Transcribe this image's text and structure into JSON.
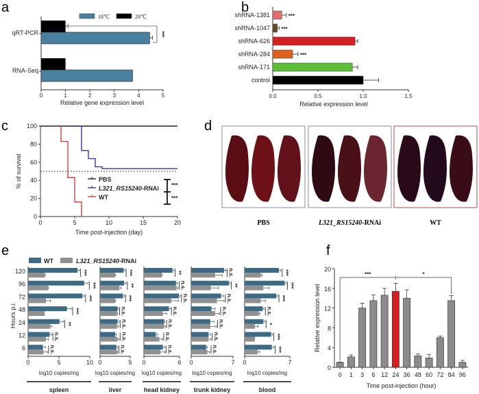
{
  "chart_data": [
    {
      "id": "a",
      "panel_label": "a",
      "type": "bar",
      "orientation": "horizontal",
      "categories": [
        "qRT-PCR",
        "RNA-Seq"
      ],
      "series": [
        {
          "name": "28℃",
          "color": "#000000",
          "values": [
            1.0,
            1.0
          ],
          "errors": [
            0.1,
            0
          ]
        },
        {
          "name": "18℃",
          "color": "#4a7fa0",
          "values": [
            4.45,
            3.75
          ],
          "errors": [
            0.12,
            0
          ]
        }
      ],
      "significance": [
        {
          "category": "qRT-PCR",
          "label": "***"
        }
      ],
      "xlabel": "Relative gene expression level",
      "xlim": [
        0,
        5
      ],
      "xticks": [
        "0",
        "1",
        "2",
        "3",
        "4",
        "5"
      ],
      "legend_position": "top"
    },
    {
      "id": "b",
      "panel_label": "b",
      "type": "bar",
      "orientation": "horizontal",
      "categories": [
        "shRNA-1381",
        "shRNA-1047",
        "shRNA-626",
        "shRNA-284",
        "shRNA-171",
        "control"
      ],
      "values": [
        0.1,
        0.05,
        0.91,
        0.22,
        0.88,
        1.0
      ],
      "errors": [
        0.05,
        0.02,
        0.03,
        0.06,
        0.06,
        0.17
      ],
      "colors": [
        "#e07070",
        "#6b4a2a",
        "#d42020",
        "#e06020",
        "#5cbf3a",
        "#000000"
      ],
      "significance": [
        "***",
        "***",
        "",
        "***",
        "",
        ""
      ],
      "xlabel": "Relative expression level",
      "xlim": [
        0,
        1.5
      ],
      "xticks": [
        "0.0",
        "0.5",
        "1.0",
        "1.5"
      ]
    },
    {
      "id": "c",
      "panel_label": "c",
      "type": "line",
      "subtype": "survival-step",
      "xlabel": "Time post-injection (day)",
      "ylabel": "% of survival",
      "xlim": [
        0,
        20
      ],
      "ylim": [
        0,
        100
      ],
      "xticks": [
        "0",
        "5",
        "10",
        "15",
        "20"
      ],
      "yticks": [
        "0",
        "20",
        "40",
        "60",
        "80",
        "100"
      ],
      "reference_line": 50,
      "series": [
        {
          "name": "PBS",
          "color": "#222222",
          "italic_part": "",
          "points": [
            [
              0,
              100
            ],
            [
              20,
              100
            ]
          ]
        },
        {
          "name": "-RNAi",
          "italic_part": "L321_RS15240",
          "color": "#3a2fb0",
          "points": [
            [
              5,
              100
            ],
            [
              6,
              100
            ],
            [
              6,
              73
            ],
            [
              7,
              73
            ],
            [
              7,
              64
            ],
            [
              8,
              64
            ],
            [
              8,
              55
            ],
            [
              9,
              55
            ],
            [
              9,
              53
            ],
            [
              20,
              53
            ]
          ]
        },
        {
          "name": "WT",
          "color": "#d04040",
          "italic_part": "",
          "points": [
            [
              3,
              100
            ],
            [
              3,
              83
            ],
            [
              4,
              83
            ],
            [
              4,
              43
            ],
            [
              5,
              43
            ],
            [
              5,
              16
            ],
            [
              6,
              16
            ],
            [
              6,
              0
            ]
          ]
        }
      ],
      "significance": [
        "***",
        "***"
      ],
      "legend_position": "center-right"
    },
    {
      "id": "e",
      "panel_label": "e",
      "type": "bar",
      "orientation": "horizontal",
      "ylabel": "Hours p.i.",
      "xlabel": "log10 copies/mg",
      "categories": [
        "120",
        "96",
        "72",
        "48",
        "24",
        "12",
        "6"
      ],
      "legend": [
        {
          "name": "WT",
          "color": "#3d6a85",
          "italic_part": ""
        },
        {
          "name": "-RNAi",
          "color": "#909090",
          "italic_part": "L321_RS15240"
        }
      ],
      "facets": [
        {
          "name": "spleen",
          "xlim": [
            0,
            10
          ],
          "xticks": [
            "0",
            "5",
            "10"
          ],
          "wt": [
            8.0,
            9.1,
            8.8,
            6.3,
            5.1,
            3.5,
            2.4
          ],
          "wt_err": [
            0.3,
            0.6,
            0.3,
            0.7,
            0.6,
            0.3,
            0.4
          ],
          "rnai": [
            2.7,
            3.2,
            2.9,
            2.7,
            3.6,
            2.9,
            2.5
          ],
          "rnai_err": [
            0.1,
            0.1,
            0.7,
            0,
            0.2,
            0.4,
            0.6
          ],
          "sig": [
            "***",
            "***",
            "***",
            "***",
            "**",
            "n.s.",
            "n.s."
          ]
        },
        {
          "name": "liver",
          "xlim": [
            0,
            5
          ],
          "xticks": [
            "0",
            "5"
          ],
          "wt": [
            3.9,
            4.0,
            3.8,
            2.9,
            2.9,
            2.5,
            2.7
          ],
          "wt_err": [
            0.2,
            0.3,
            0.2,
            0.1,
            0.2,
            0.2,
            0.2
          ],
          "rnai": [
            2.5,
            3.2,
            2.5,
            2.8,
            2.8,
            2.9,
            2.8
          ],
          "rnai_err": [
            0.1,
            0.3,
            0.1,
            0.1,
            0.2,
            0.2,
            0.1
          ],
          "sig": [
            "***",
            "**",
            "***",
            "n.s.",
            "n.s.",
            "n.s.",
            "n.s."
          ]
        },
        {
          "name": "head kidney",
          "xlim": [
            0,
            6
          ],
          "xticks": [
            "0",
            "6"
          ],
          "wt": [
            4.8,
            5.4,
            5.9,
            4.2,
            3.4,
            2.0,
            3.2
          ],
          "wt_err": [
            0.2,
            0.2,
            0.2,
            0.2,
            0.1,
            0.3,
            0.3
          ],
          "rnai": [
            3.0,
            5.5,
            4.6,
            3.2,
            3.4,
            2.6,
            2.8
          ],
          "rnai_err": [
            0.1,
            0.2,
            1.2,
            0.6,
            0.2,
            0.5,
            0.7
          ],
          "sig": [
            "**",
            "n.s.",
            "n.s.",
            "n.s.",
            "n.s.",
            "n.s.",
            "n.s."
          ]
        },
        {
          "name": "trunk kidney",
          "xlim": [
            0,
            7
          ],
          "xticks": [
            "0",
            "7"
          ],
          "wt": [
            5.5,
            6.3,
            5.0,
            3.4,
            3.2,
            2.9,
            2.5
          ],
          "wt_err": [
            0.3,
            0.2,
            0.4,
            0.6,
            0.6,
            0.3,
            0.2
          ],
          "rnai": [
            4.0,
            3.3,
            4.3,
            4.0,
            3.2,
            2.9,
            2.7
          ],
          "rnai_err": [
            1.2,
            1.3,
            1.2,
            0.7,
            1.0,
            0.4,
            0.4
          ],
          "sig": [
            "n.s.",
            "**",
            "n.s.",
            "n.s.",
            "n.s.",
            "n.s.",
            "n.s."
          ]
        },
        {
          "name": "blood",
          "xlim": [
            0,
            7
          ],
          "xticks": [
            "0",
            "7"
          ],
          "wt": [
            5.3,
            6.2,
            4.9,
            2.8,
            2.9,
            4.1,
            4.2
          ],
          "wt_err": [
            0.3,
            0.2,
            0.2,
            0.2,
            0.2,
            0.2,
            0.3
          ],
          "rnai": [
            2.5,
            2.9,
            2.5,
            2.2,
            1.6,
            1.6,
            2.0
          ],
          "rnai_err": [
            0.2,
            0.9,
            0.7,
            0.2,
            0.5,
            0,
            0.3
          ],
          "sig": [
            "***",
            "***",
            "***",
            "n.s.",
            "*",
            "***",
            "***"
          ]
        }
      ]
    },
    {
      "id": "f",
      "panel_label": "f",
      "type": "bar",
      "categories": [
        "0",
        "1",
        "3",
        "6",
        "12",
        "24",
        "36",
        "48",
        "60",
        "72",
        "84",
        "96"
      ],
      "values": [
        1.0,
        2.1,
        12.0,
        13.5,
        14.6,
        15.4,
        14.0,
        2.3,
        1.9,
        6.0,
        13.5,
        1.0
      ],
      "errors": [
        0.05,
        0.4,
        1.0,
        1.2,
        1.4,
        1.6,
        1.7,
        0.4,
        0.7,
        0.3,
        1.0,
        0.4
      ],
      "highlight_index": 5,
      "bar_color": "#8c8c8c",
      "highlight_color": "#d42020",
      "significance": [
        {
          "from": "0",
          "to": "24",
          "label": "***"
        },
        {
          "from": "24",
          "to": "84",
          "label": "*"
        }
      ],
      "xlabel": "Time post-injection (hour)",
      "ylabel": "Relative expression level",
      "ylim": [
        0,
        20
      ],
      "yticks": [
        "0",
        "4",
        "8",
        "12",
        "16",
        "20"
      ]
    }
  ],
  "panel_d": {
    "panel_label": "d",
    "groups": [
      {
        "label": "PBS",
        "italic_part": "",
        "border_color": "#8a8aa8"
      },
      {
        "label": "-RNAi",
        "italic_part": "L321_RS15240",
        "border_color": "#8a8aa8"
      },
      {
        "label": "WT",
        "italic_part": "",
        "border_color": "#b04848"
      }
    ]
  }
}
